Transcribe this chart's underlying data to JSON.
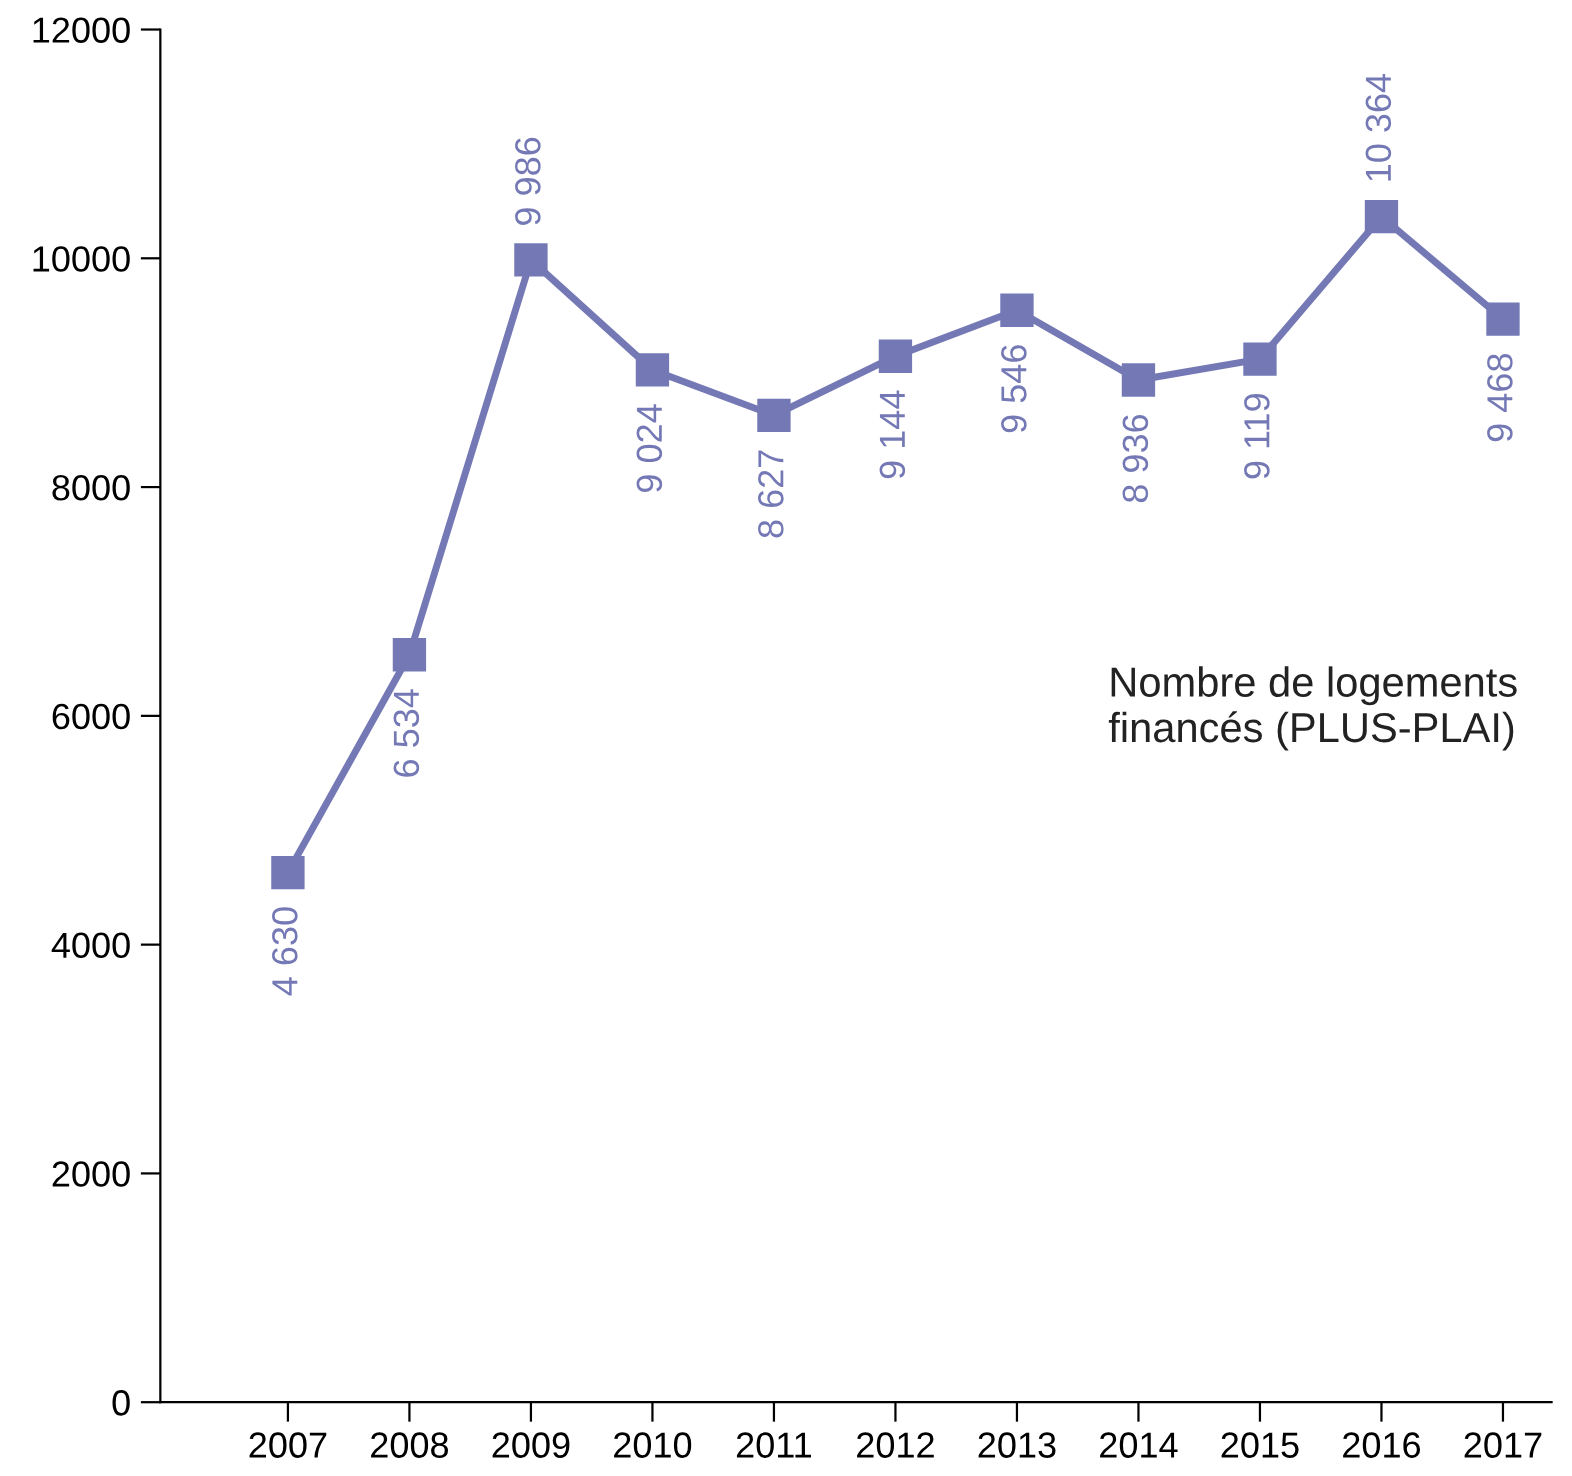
{
  "chart_data": {
    "type": "line",
    "categories": [
      "2007",
      "2008",
      "2009",
      "2010",
      "2011",
      "2012",
      "2013",
      "2014",
      "2015",
      "2016",
      "2017"
    ],
    "series": [
      {
        "name": "Nombre de logements financés (PLUS-PLAI)",
        "color": "#7479b5",
        "values": [
          4630,
          6534,
          9986,
          9024,
          8627,
          9144,
          9546,
          8936,
          9119,
          10364,
          9468
        ],
        "value_labels": [
          "4 630",
          "6 534",
          "9 986",
          "9 024",
          "8 627",
          "9 144",
          "9 546",
          "8 936",
          "9 119",
          "10 364",
          "9 468"
        ]
      }
    ],
    "ylim": [
      0,
      12000
    ],
    "yticks": [
      0,
      2000,
      4000,
      6000,
      8000,
      10000,
      12000
    ],
    "grid": false,
    "legend": "right",
    "marker": "square",
    "line_style": "solid"
  }
}
